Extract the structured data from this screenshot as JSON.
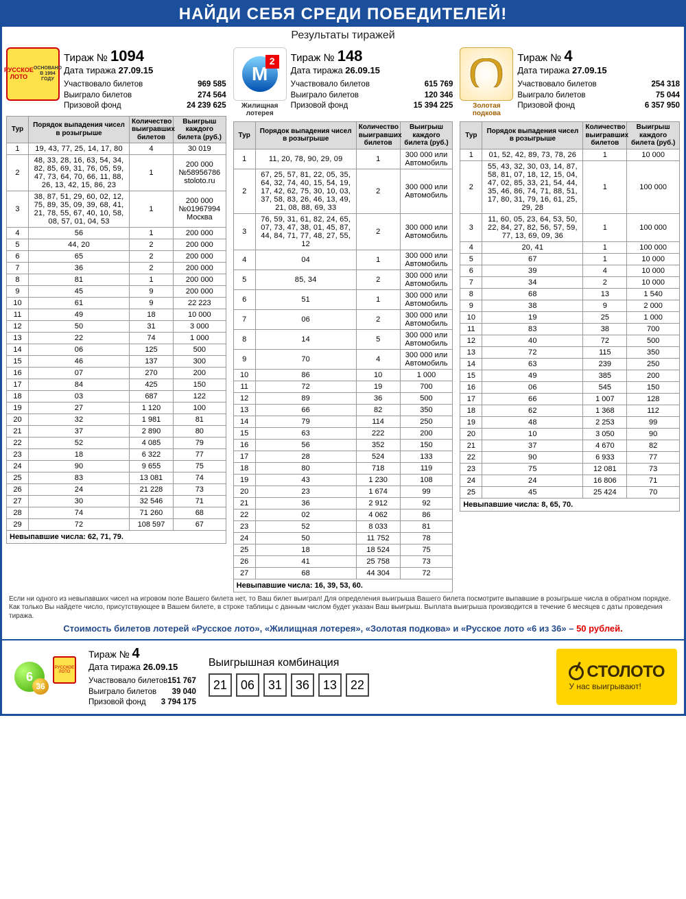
{
  "banner": "НАЙДИ СЕБЯ СРЕДИ ПОБЕДИТЕЛЕЙ!",
  "subtitle": "Результаты тиражей",
  "tableHeaders": {
    "tour": "Тур",
    "nums": "Порядок выпадения чисел в розыгрыше",
    "count": "Количество выигравших билетов",
    "prize": "Выигрыш каждого билета (руб.)"
  },
  "footnote": "Если ни одного из невыпавших чисел на игровом поле Вашего билета нет, то Ваш билет выиграл! Для определения выигрыша Вашего билета посмотрите выпавшие в розыгрыше числа в обратном порядке. Как только Вы найдете число, присутствующее в Вашем билете, в строке таблицы с данным числом будет указан Ваш выигрыш. Выплата выигрыша производится в течение 6 месяцев с даты проведения тиража.",
  "priceLinePrefix": "Стоимость билетов лотерей «Русское лото», «Жилищная лотерея», «Золотая подкова» и «Русское лото «6 из 36» – ",
  "priceValue": "50 рублей.",
  "lotteries": [
    {
      "id": "russkoe-loto",
      "logoCaption": "РУССКОЕ ЛОТО  ОСНОВАНО В 1994 ГОДУ",
      "drawLabel": "Тираж №",
      "drawNumber": "1094",
      "dateLabel": "Дата тиража",
      "dateValue": "27.09.15",
      "stats": [
        {
          "label": "Участвовало билетов",
          "value": "969 585"
        },
        {
          "label": "Выиграло билетов",
          "value": "274 564"
        },
        {
          "label": "Призовой фонд",
          "value": "24 239 625"
        }
      ],
      "rows": [
        {
          "t": "1",
          "n": "19, 43, 77, 25, 14, 17, 80",
          "c": "4",
          "p": "30 019"
        },
        {
          "t": "2",
          "n": "48, 33, 28, 16, 63, 54, 34, 82, 85, 69, 31, 76, 05, 59, 47, 73, 64, 70, 66, 11, 88, 26, 13, 42, 15, 86, 23",
          "c": "1",
          "p": "200 000 №58956786 stoloto.ru"
        },
        {
          "t": "3",
          "n": "38, 87, 51, 29, 60, 02, 12, 75, 89, 35, 09, 39, 68, 41, 21, 78, 55, 67, 40, 10, 58, 08, 57, 01, 04, 53",
          "c": "1",
          "p": "200 000 №01967994 Москва"
        },
        {
          "t": "4",
          "n": "56",
          "c": "1",
          "p": "200 000"
        },
        {
          "t": "5",
          "n": "44, 20",
          "c": "2",
          "p": "200 000"
        },
        {
          "t": "6",
          "n": "65",
          "c": "2",
          "p": "200 000"
        },
        {
          "t": "7",
          "n": "36",
          "c": "2",
          "p": "200 000"
        },
        {
          "t": "8",
          "n": "81",
          "c": "1",
          "p": "200 000"
        },
        {
          "t": "9",
          "n": "45",
          "c": "9",
          "p": "200 000"
        },
        {
          "t": "10",
          "n": "61",
          "c": "9",
          "p": "22 223"
        },
        {
          "t": "11",
          "n": "49",
          "c": "18",
          "p": "10 000"
        },
        {
          "t": "12",
          "n": "50",
          "c": "31",
          "p": "3 000"
        },
        {
          "t": "13",
          "n": "22",
          "c": "74",
          "p": "1 000"
        },
        {
          "t": "14",
          "n": "06",
          "c": "125",
          "p": "500"
        },
        {
          "t": "15",
          "n": "46",
          "c": "137",
          "p": "300"
        },
        {
          "t": "16",
          "n": "07",
          "c": "270",
          "p": "200"
        },
        {
          "t": "17",
          "n": "84",
          "c": "425",
          "p": "150"
        },
        {
          "t": "18",
          "n": "03",
          "c": "687",
          "p": "122"
        },
        {
          "t": "19",
          "n": "27",
          "c": "1 120",
          "p": "100"
        },
        {
          "t": "20",
          "n": "32",
          "c": "1 981",
          "p": "81"
        },
        {
          "t": "21",
          "n": "37",
          "c": "2 890",
          "p": "80"
        },
        {
          "t": "22",
          "n": "52",
          "c": "4 085",
          "p": "79"
        },
        {
          "t": "23",
          "n": "18",
          "c": "6 322",
          "p": "77"
        },
        {
          "t": "24",
          "n": "90",
          "c": "9 655",
          "p": "75"
        },
        {
          "t": "25",
          "n": "83",
          "c": "13 081",
          "p": "74"
        },
        {
          "t": "26",
          "n": "24",
          "c": "21 228",
          "p": "73"
        },
        {
          "t": "27",
          "n": "30",
          "c": "32 546",
          "p": "71"
        },
        {
          "t": "28",
          "n": "74",
          "c": "71 260",
          "p": "68"
        },
        {
          "t": "29",
          "n": "72",
          "c": "108 597",
          "p": "67"
        }
      ],
      "notDrawn": "Невыпавшие числа: 62, 71, 79."
    },
    {
      "id": "zhilishchnaya",
      "logoCaption": "Жилищная лотерея",
      "drawLabel": "Тираж №",
      "drawNumber": "148",
      "dateLabel": "Дата тиража",
      "dateValue": "26.09.15",
      "stats": [
        {
          "label": "Участвовало билетов",
          "value": "615 769"
        },
        {
          "label": "Выиграло билетов",
          "value": "120 346"
        },
        {
          "label": "Призовой фонд",
          "value": "15 394 225"
        }
      ],
      "rows": [
        {
          "t": "1",
          "n": "11, 20, 78, 90, 29, 09",
          "c": "1",
          "p": "300 000 или Автомобиль"
        },
        {
          "t": "2",
          "n": "67, 25, 57, 81, 22, 05, 35, 64, 32, 74, 40, 15, 54, 19, 17, 42, 62, 75, 30, 10, 03, 37, 58, 83, 26, 46, 13, 49, 21, 08, 88, 69, 33",
          "c": "2",
          "p": "300 000 или Автомобиль"
        },
        {
          "t": "3",
          "n": "76, 59, 31, 61, 82, 24, 65, 07, 73, 47, 38, 01, 45, 87, 44, 84, 71, 77, 48, 27, 55, 12",
          "c": "2",
          "p": "300 000 или Автомобиль"
        },
        {
          "t": "4",
          "n": "04",
          "c": "1",
          "p": "300 000 или Автомобиль"
        },
        {
          "t": "5",
          "n": "85, 34",
          "c": "2",
          "p": "300 000 или Автомобиль"
        },
        {
          "t": "6",
          "n": "51",
          "c": "1",
          "p": "300 000 или Автомобиль"
        },
        {
          "t": "7",
          "n": "06",
          "c": "2",
          "p": "300 000 или Автомобиль"
        },
        {
          "t": "8",
          "n": "14",
          "c": "5",
          "p": "300 000 или Автомобиль"
        },
        {
          "t": "9",
          "n": "70",
          "c": "4",
          "p": "300 000 или Автомобиль"
        },
        {
          "t": "10",
          "n": "86",
          "c": "10",
          "p": "1 000"
        },
        {
          "t": "11",
          "n": "72",
          "c": "19",
          "p": "700"
        },
        {
          "t": "12",
          "n": "89",
          "c": "36",
          "p": "500"
        },
        {
          "t": "13",
          "n": "66",
          "c": "82",
          "p": "350"
        },
        {
          "t": "14",
          "n": "79",
          "c": "114",
          "p": "250"
        },
        {
          "t": "15",
          "n": "63",
          "c": "222",
          "p": "200"
        },
        {
          "t": "16",
          "n": "56",
          "c": "352",
          "p": "150"
        },
        {
          "t": "17",
          "n": "28",
          "c": "524",
          "p": "133"
        },
        {
          "t": "18",
          "n": "80",
          "c": "718",
          "p": "119"
        },
        {
          "t": "19",
          "n": "43",
          "c": "1 230",
          "p": "108"
        },
        {
          "t": "20",
          "n": "23",
          "c": "1 674",
          "p": "99"
        },
        {
          "t": "21",
          "n": "36",
          "c": "2 912",
          "p": "92"
        },
        {
          "t": "22",
          "n": "02",
          "c": "4 062",
          "p": "86"
        },
        {
          "t": "23",
          "n": "52",
          "c": "8 033",
          "p": "81"
        },
        {
          "t": "24",
          "n": "50",
          "c": "11 752",
          "p": "78"
        },
        {
          "t": "25",
          "n": "18",
          "c": "18 524",
          "p": "75"
        },
        {
          "t": "26",
          "n": "41",
          "c": "25 758",
          "p": "73"
        },
        {
          "t": "27",
          "n": "68",
          "c": "44 304",
          "p": "72"
        }
      ],
      "notDrawn": "Невыпавшие числа: 16, 39, 53, 60."
    },
    {
      "id": "zolotaya-podkova",
      "logoCaption": "Золотая подкова",
      "drawLabel": "Тираж №",
      "drawNumber": "4",
      "dateLabel": "Дата тиража",
      "dateValue": "27.09.15",
      "stats": [
        {
          "label": "Участвовало билетов",
          "value": "254 318"
        },
        {
          "label": "Выиграло билетов",
          "value": "75 044"
        },
        {
          "label": "Призовой фонд",
          "value": "6 357 950"
        }
      ],
      "rows": [
        {
          "t": "1",
          "n": "01, 52, 42, 89, 73, 78, 26",
          "c": "1",
          "p": "10 000"
        },
        {
          "t": "2",
          "n": "55, 43, 32, 30, 03, 14, 87, 58, 81, 07, 18, 12, 15, 04, 47, 02, 85, 33, 21, 54, 44, 35, 46, 86, 74, 71, 88, 51, 17, 80, 31, 79, 16, 61, 25, 29, 28",
          "c": "1",
          "p": "100 000"
        },
        {
          "t": "3",
          "n": "11, 60, 05, 23, 64, 53, 50, 22, 84, 27, 82, 56, 57, 59, 77, 13, 69, 09, 36",
          "c": "1",
          "p": "100 000"
        },
        {
          "t": "4",
          "n": "20, 41",
          "c": "1",
          "p": "100 000"
        },
        {
          "t": "5",
          "n": "67",
          "c": "1",
          "p": "10 000"
        },
        {
          "t": "6",
          "n": "39",
          "c": "4",
          "p": "10 000"
        },
        {
          "t": "7",
          "n": "34",
          "c": "2",
          "p": "10 000"
        },
        {
          "t": "8",
          "n": "68",
          "c": "13",
          "p": "1 540"
        },
        {
          "t": "9",
          "n": "38",
          "c": "9",
          "p": "2 000"
        },
        {
          "t": "10",
          "n": "19",
          "c": "25",
          "p": "1 000"
        },
        {
          "t": "11",
          "n": "83",
          "c": "38",
          "p": "700"
        },
        {
          "t": "12",
          "n": "40",
          "c": "72",
          "p": "500"
        },
        {
          "t": "13",
          "n": "72",
          "c": "115",
          "p": "350"
        },
        {
          "t": "14",
          "n": "63",
          "c": "239",
          "p": "250"
        },
        {
          "t": "15",
          "n": "49",
          "c": "385",
          "p": "200"
        },
        {
          "t": "16",
          "n": "06",
          "c": "545",
          "p": "150"
        },
        {
          "t": "17",
          "n": "66",
          "c": "1 007",
          "p": "128"
        },
        {
          "t": "18",
          "n": "62",
          "c": "1 368",
          "p": "112"
        },
        {
          "t": "19",
          "n": "48",
          "c": "2 253",
          "p": "99"
        },
        {
          "t": "20",
          "n": "10",
          "c": "3 050",
          "p": "90"
        },
        {
          "t": "21",
          "n": "37",
          "c": "4 670",
          "p": "82"
        },
        {
          "t": "22",
          "n": "90",
          "c": "6 933",
          "p": "77"
        },
        {
          "t": "23",
          "n": "75",
          "c": "12 081",
          "p": "73"
        },
        {
          "t": "24",
          "n": "24",
          "c": "16 806",
          "p": "71"
        },
        {
          "t": "25",
          "n": "45",
          "c": "25 424",
          "p": "70"
        }
      ],
      "notDrawn": "Невыпавшие числа: 8, 65, 70."
    }
  ],
  "bottom": {
    "drawLabel": "Тираж №",
    "drawNumber": "4",
    "dateLabel": "Дата тиража",
    "dateValue": "26.09.15",
    "stats": [
      {
        "label": "Участвовало билетов",
        "value": "151 767"
      },
      {
        "label": "Выиграло билетов",
        "value": "39 040"
      },
      {
        "label": "Призовой фонд",
        "value": "3 794 175"
      }
    ],
    "comboTitle": "Выигрышная комбинация",
    "combo": [
      "21",
      "06",
      "31",
      "36",
      "13",
      "22"
    ],
    "stolotoName": "СТОЛОТО",
    "stolotoTag": "У нас выигрывают!"
  }
}
